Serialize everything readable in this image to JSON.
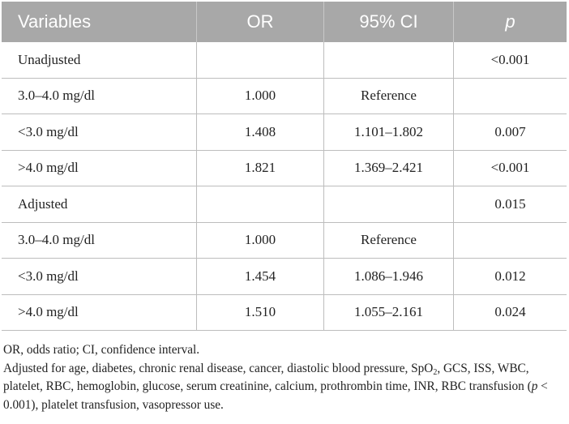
{
  "table": {
    "headers": [
      "Variables",
      "OR",
      "95% CI",
      "p"
    ],
    "rows": [
      [
        "Unadjusted",
        "",
        "",
        "<0.001"
      ],
      [
        "3.0–4.0 mg/dl",
        "1.000",
        "Reference",
        ""
      ],
      [
        "<3.0 mg/dl",
        "1.408",
        "1.101–1.802",
        "0.007"
      ],
      [
        ">4.0 mg/dl",
        "1.821",
        "1.369–2.421",
        "<0.001"
      ],
      [
        "Adjusted",
        "",
        "",
        "0.015"
      ],
      [
        "3.0–4.0 mg/dl",
        "1.000",
        "Reference",
        ""
      ],
      [
        "<3.0 mg/dl",
        "1.454",
        "1.086–1.946",
        "0.012"
      ],
      [
        ">4.0 mg/dl",
        "1.510",
        "1.055–2.161",
        "0.024"
      ]
    ]
  },
  "footnotes": {
    "abbrev": "OR, odds ratio; CI, confidence interval.",
    "adjusted_pre": "Adjusted for age, diabetes, chronic renal disease, cancer, diastolic blood pressure, SpO",
    "adjusted_sub": "2",
    "adjusted_mid": ", GCS, ISS, WBC, platelet, RBC, hemoglobin, glucose, serum creatinine, calcium, prothrombin time, INR, RBC transfusion (",
    "adjusted_p": "p",
    "adjusted_post": " < 0.001), platelet transfusion, vasopressor use."
  }
}
